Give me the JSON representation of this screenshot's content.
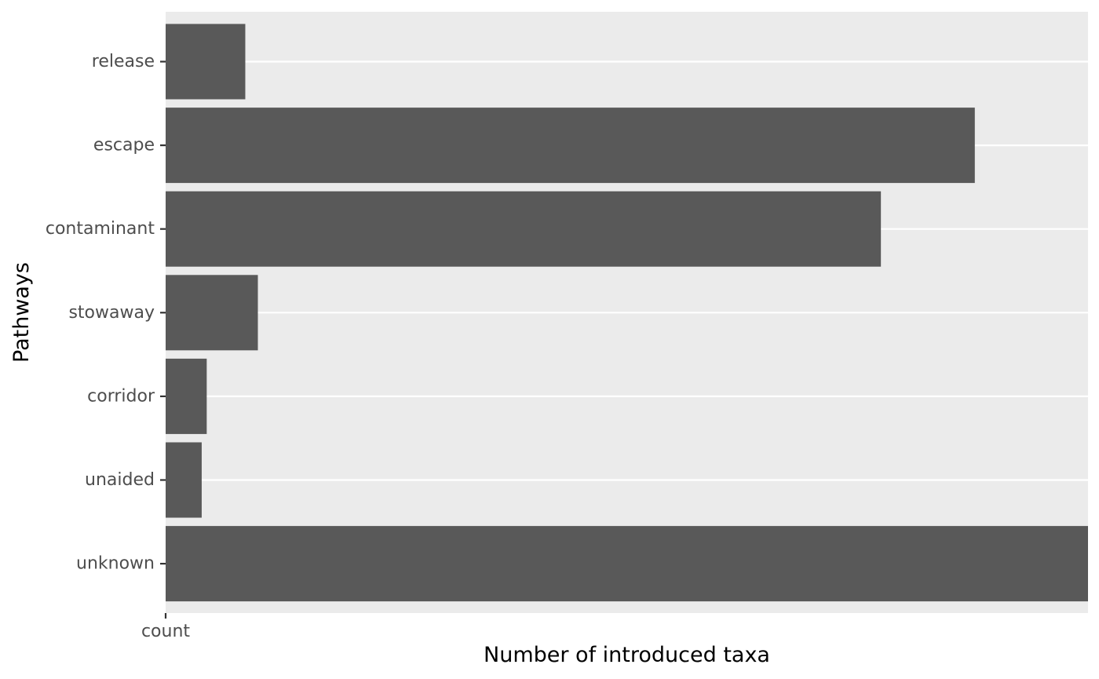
{
  "chart_data": {
    "type": "bar",
    "orientation": "horizontal",
    "categories": [
      "release",
      "escape",
      "contaminant",
      "stowaway",
      "corridor",
      "unaided",
      "unknown"
    ],
    "values": [
      9.5,
      96.5,
      85.3,
      11.0,
      4.9,
      4.3,
      110.0
    ],
    "xlabel": "Number of introduced taxa",
    "ylabel": "Pathways",
    "x_tick_labels": [
      "count"
    ],
    "xlim": [
      0,
      110
    ],
    "grid": true,
    "legend": "none",
    "colors": {
      "panel_background": "#ebebeb",
      "grid": "#ffffff",
      "bar": "#595959",
      "tick_text": "#4d4d4d",
      "axis_title": "#000000"
    }
  }
}
